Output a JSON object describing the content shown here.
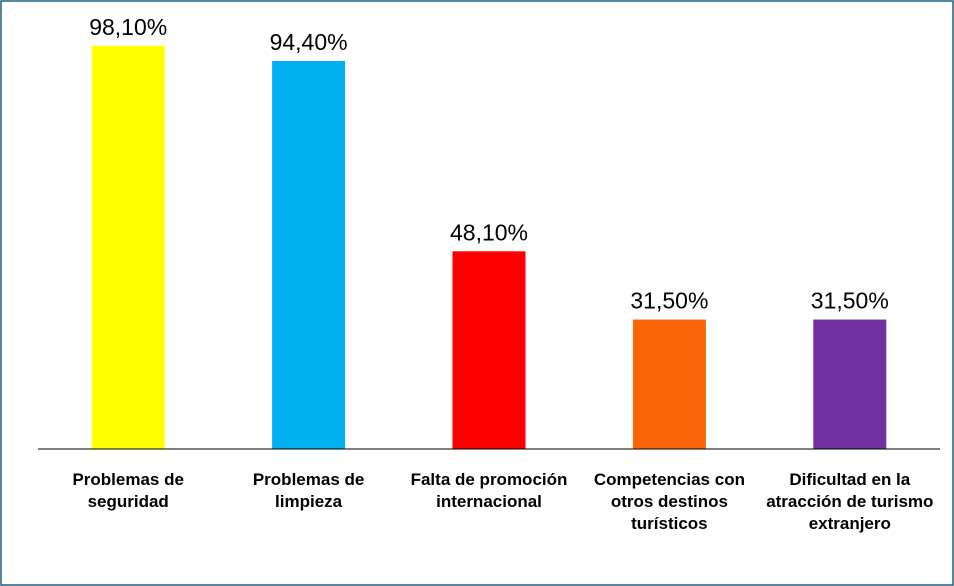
{
  "chart_data": {
    "type": "bar",
    "categories": [
      "Problemas de seguridad",
      "Problemas de limpieza",
      "Falta de promoción internacional",
      "Competencias con otros destinos turísticos",
      "Dificultad en la atracción de turismo extranjero"
    ],
    "values": [
      98.1,
      94.4,
      48.1,
      31.5,
      31.5
    ],
    "value_labels": [
      "98,10%",
      "94,40%",
      "48,10%",
      "31,50%",
      "31,50%"
    ],
    "colors": [
      "#ffff00",
      "#00b0f0",
      "#ff0000",
      "#fa6508",
      "#7030a0"
    ],
    "ylim": [
      0,
      100
    ]
  }
}
